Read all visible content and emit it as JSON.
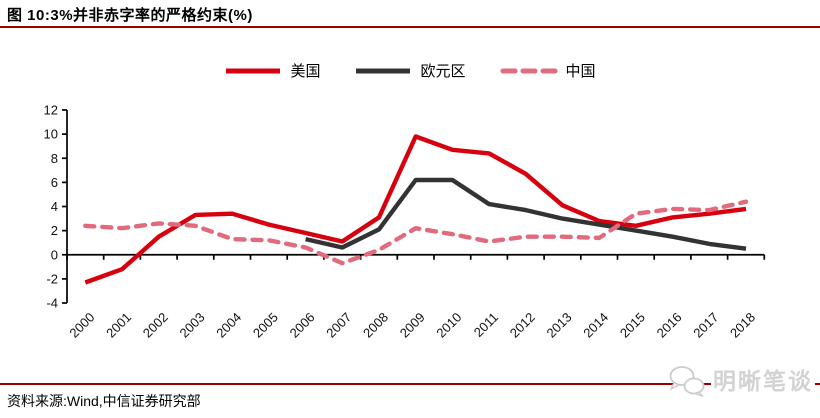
{
  "title": "图 10:3%并非赤字率的严格约束(%)",
  "source": "资料来源:Wind,中信证券研究部",
  "watermark": {
    "label": "明晰笔谈",
    "icon": "chat-bubbles-icon"
  },
  "colors": {
    "rule_dark_red": "#990000",
    "us_red": "#d7000f",
    "eurozone_dark": "#333333",
    "china_pink": "#e06b7d",
    "axis_black": "#000000",
    "watermark_gray": "#d3d3d3"
  },
  "chart_data": {
    "type": "line",
    "title": "图 10:3%并非赤字率的严格约束(%)",
    "xlabel": "",
    "ylabel": "",
    "ylim": [
      -4,
      12
    ],
    "ytick_step": 2,
    "grid": false,
    "legend_position": "top",
    "categories": [
      2000,
      2001,
      2002,
      2003,
      2004,
      2005,
      2006,
      2007,
      2008,
      2009,
      2010,
      2011,
      2012,
      2013,
      2014,
      2015,
      2016,
      2017,
      2018
    ],
    "series": [
      {
        "id": "us",
        "name": "美国",
        "color": "#d7000f",
        "style": "solid",
        "values": [
          -2.3,
          -1.2,
          1.5,
          3.3,
          3.4,
          2.5,
          1.8,
          1.1,
          3.1,
          9.8,
          8.7,
          8.4,
          6.7,
          4.1,
          2.8,
          2.4,
          3.1,
          3.4,
          3.8
        ]
      },
      {
        "id": "eurozone",
        "name": "欧元区",
        "color": "#333333",
        "style": "solid",
        "values": [
          null,
          null,
          null,
          null,
          null,
          null,
          1.3,
          0.6,
          2.1,
          6.2,
          6.2,
          4.2,
          3.7,
          3.0,
          2.5,
          2.0,
          1.5,
          0.9,
          0.5
        ]
      },
      {
        "id": "china",
        "name": "中国",
        "color": "#e06b7d",
        "style": "dashed",
        "values": [
          2.4,
          2.2,
          2.6,
          2.4,
          1.3,
          1.2,
          0.6,
          -0.7,
          0.4,
          2.2,
          1.7,
          1.1,
          1.5,
          1.5,
          1.4,
          3.4,
          3.8,
          3.7,
          4.4
        ]
      }
    ]
  }
}
